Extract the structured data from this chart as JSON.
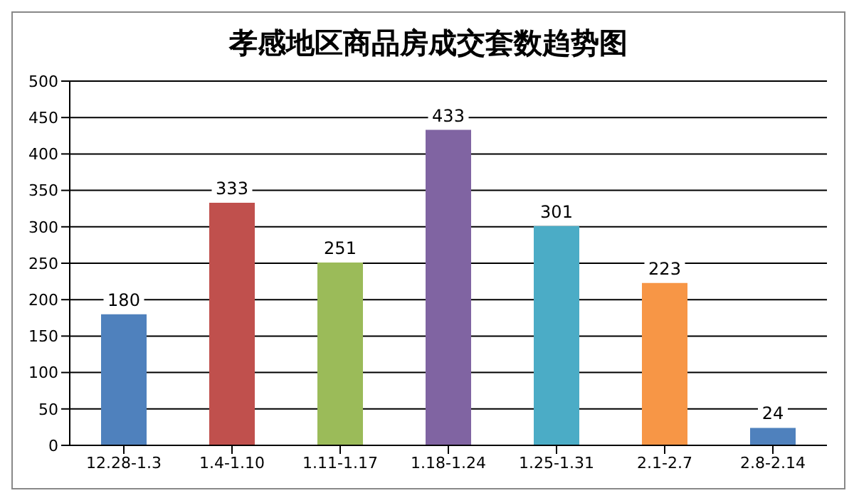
{
  "chart_data": {
    "type": "bar",
    "title": "孝感地区商品房成交套数趋势图",
    "categories": [
      "12.28-1.3",
      "1.4-1.10",
      "1.11-1.17",
      "1.18-1.24",
      "1.25-1.31",
      "2.1-2.7",
      "2.8-2.14"
    ],
    "values": [
      180,
      333,
      251,
      433,
      301,
      223,
      24
    ],
    "colors": [
      "#4f81bd",
      "#c0504d",
      "#9bbb59",
      "#8064a2",
      "#4bacc6",
      "#f79646",
      "#4f81bd"
    ],
    "ylim": [
      0,
      500
    ],
    "yticks": [
      0,
      50,
      100,
      150,
      200,
      250,
      300,
      350,
      400,
      450,
      500
    ],
    "grid": "y",
    "data_labels": true,
    "legend": false
  }
}
